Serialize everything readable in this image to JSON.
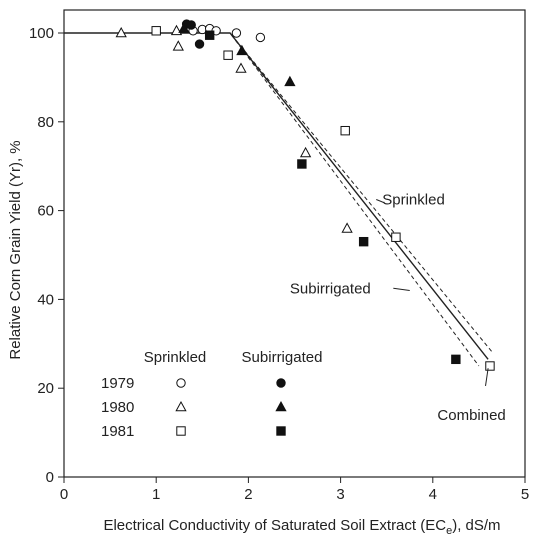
{
  "chart_data": {
    "type": "scatter",
    "xlabel": "Electrical Conductivity of Saturated Soil Extract (EC",
    "xlabel_sub": "e",
    "xlabel_suffix": "), dS/m",
    "ylabel": "Relative Corn Grain Yield (Yr), %",
    "xlim": [
      0,
      5
    ],
    "ylim": [
      0,
      105
    ],
    "x_ticks": [
      0,
      1,
      2,
      3,
      4,
      5
    ],
    "y_ticks": [
      0,
      20,
      40,
      60,
      80,
      100
    ],
    "x_tick_labels": [
      "0",
      "1",
      "2",
      "3",
      "4",
      "5"
    ],
    "y_tick_labels": [
      "0",
      "20",
      "40",
      "60",
      "80",
      "100"
    ],
    "grid": false,
    "legend": {
      "position": "bottom-left",
      "headers": [
        "Sprinkled",
        "Subirrigated"
      ],
      "rows": [
        {
          "year": "1979",
          "sprinkled_marker": "open-circle",
          "subirrigated_marker": "filled-circle"
        },
        {
          "year": "1980",
          "sprinkled_marker": "open-triangle",
          "subirrigated_marker": "filled-triangle"
        },
        {
          "year": "1981",
          "sprinkled_marker": "open-square",
          "subirrigated_marker": "filled-square"
        }
      ]
    },
    "lines": [
      {
        "label": "Sprinkled",
        "style": "dashed",
        "points": [
          [
            0,
            100
          ],
          [
            1.8,
            100
          ],
          [
            4.65,
            28
          ]
        ]
      },
      {
        "label": "Combined",
        "style": "solid",
        "points": [
          [
            0,
            100
          ],
          [
            1.8,
            100
          ],
          [
            4.6,
            26.5
          ]
        ]
      },
      {
        "label": "Subirrigated",
        "style": "dashed",
        "points": [
          [
            0,
            100
          ],
          [
            1.8,
            100
          ],
          [
            4.5,
            25
          ]
        ]
      }
    ],
    "annotations": [
      {
        "text": "Sprinkled",
        "x": 3.3,
        "y": 62.5
      },
      {
        "text": "Subirrigated",
        "x": 2.45,
        "y": 42.5
      },
      {
        "text": "Combined",
        "x": 4.05,
        "y": 14
      }
    ],
    "series": [
      {
        "year": "1979",
        "treatment": "Sprinkled",
        "marker": "open-circle",
        "points": [
          [
            1.4,
            100.5
          ],
          [
            1.5,
            100.8
          ],
          [
            1.58,
            101
          ],
          [
            1.65,
            100.5
          ],
          [
            1.87,
            100
          ],
          [
            2.13,
            99
          ]
        ]
      },
      {
        "year": "1979",
        "treatment": "Subirrigated",
        "marker": "filled-circle",
        "points": [
          [
            1.33,
            102
          ],
          [
            1.38,
            101.8
          ],
          [
            1.47,
            97.5
          ]
        ]
      },
      {
        "year": "1980",
        "treatment": "Sprinkled",
        "marker": "open-triangle",
        "points": [
          [
            0.62,
            100
          ],
          [
            1.22,
            100.5
          ],
          [
            1.24,
            97
          ],
          [
            1.92,
            92
          ],
          [
            2.62,
            73
          ],
          [
            3.07,
            56
          ]
        ]
      },
      {
        "year": "1980",
        "treatment": "Subirrigated",
        "marker": "filled-triangle",
        "points": [
          [
            1.3,
            101
          ],
          [
            1.93,
            96
          ],
          [
            2.45,
            89
          ]
        ]
      },
      {
        "year": "1981",
        "treatment": "Sprinkled",
        "marker": "open-square",
        "points": [
          [
            1.0,
            100.5
          ],
          [
            1.78,
            95
          ],
          [
            3.05,
            78
          ],
          [
            3.6,
            54
          ],
          [
            4.62,
            25
          ]
        ]
      },
      {
        "year": "1981",
        "treatment": "Subirrigated",
        "marker": "filled-square",
        "points": [
          [
            1.58,
            99.5
          ],
          [
            2.58,
            70.5
          ],
          [
            3.25,
            53
          ],
          [
            4.25,
            26.5
          ]
        ]
      }
    ]
  }
}
